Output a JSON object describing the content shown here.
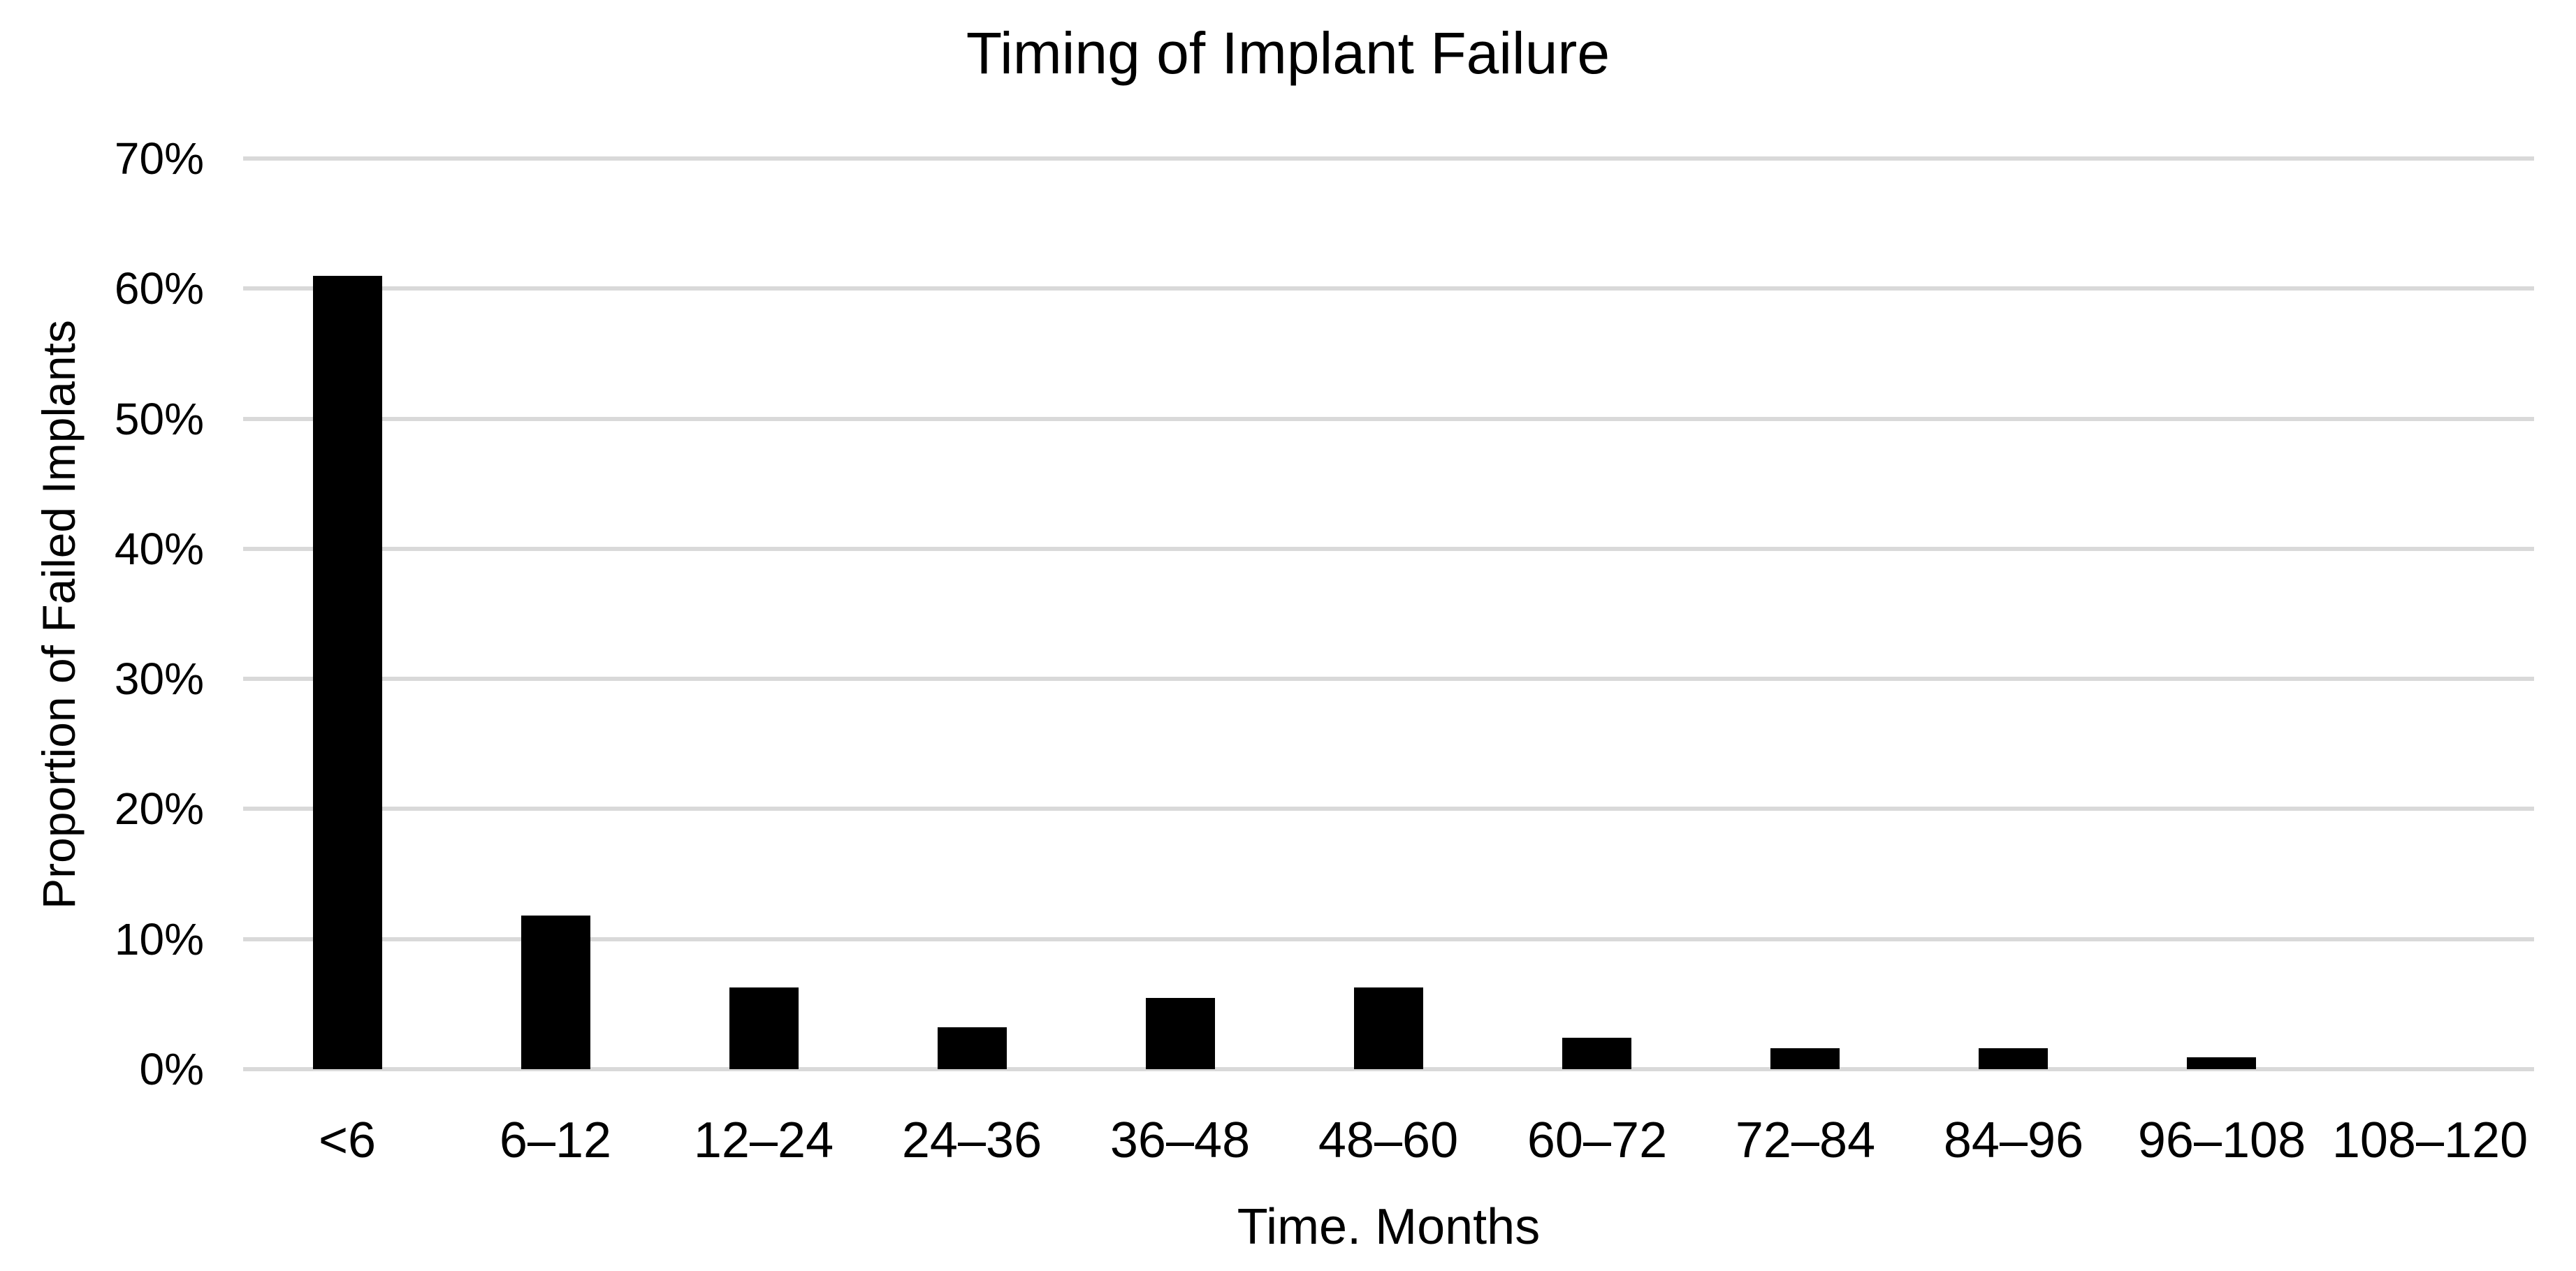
{
  "chart_data": {
    "type": "bar",
    "title": "Timing of Implant Failure",
    "xlabel": "Time. Months",
    "ylabel": "Proportion of Failed Implants",
    "categories": [
      "<6",
      "6–12",
      "12–24",
      "24–36",
      "36–48",
      "48–60",
      "60–72",
      "72–84",
      "84–96",
      "96–108",
      "108–120"
    ],
    "values": [
      61,
      11.8,
      6.3,
      3.2,
      5.5,
      6.3,
      2.4,
      1.6,
      1.6,
      0.9,
      0
    ],
    "unit": "percent",
    "ylim": [
      0,
      70
    ],
    "yticks": [
      0,
      10,
      20,
      30,
      40,
      50,
      60,
      70
    ],
    "ytick_labels": [
      "0%",
      "10%",
      "20%",
      "30%",
      "40%",
      "50%",
      "60%",
      "70%"
    ],
    "grid": "horizontal",
    "legend": "none",
    "colors": {
      "bar": "#000000",
      "gridline": "#d9d9d9",
      "text": "#000000",
      "background": "#ffffff"
    }
  }
}
